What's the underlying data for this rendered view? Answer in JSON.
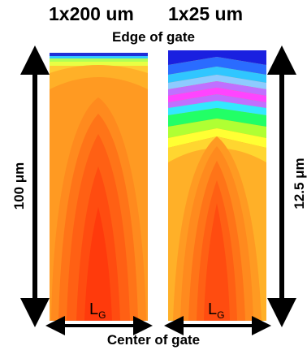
{
  "diagram": {
    "left_title": "1x200 um",
    "right_title": "1x25 um",
    "top_label": "Edge of gate",
    "bottom_label": "Center of gate",
    "left_dimension": "100 μm",
    "right_dimension": "12.5 μm",
    "gate_length_symbol": "L",
    "gate_length_subscript": "G"
  }
}
